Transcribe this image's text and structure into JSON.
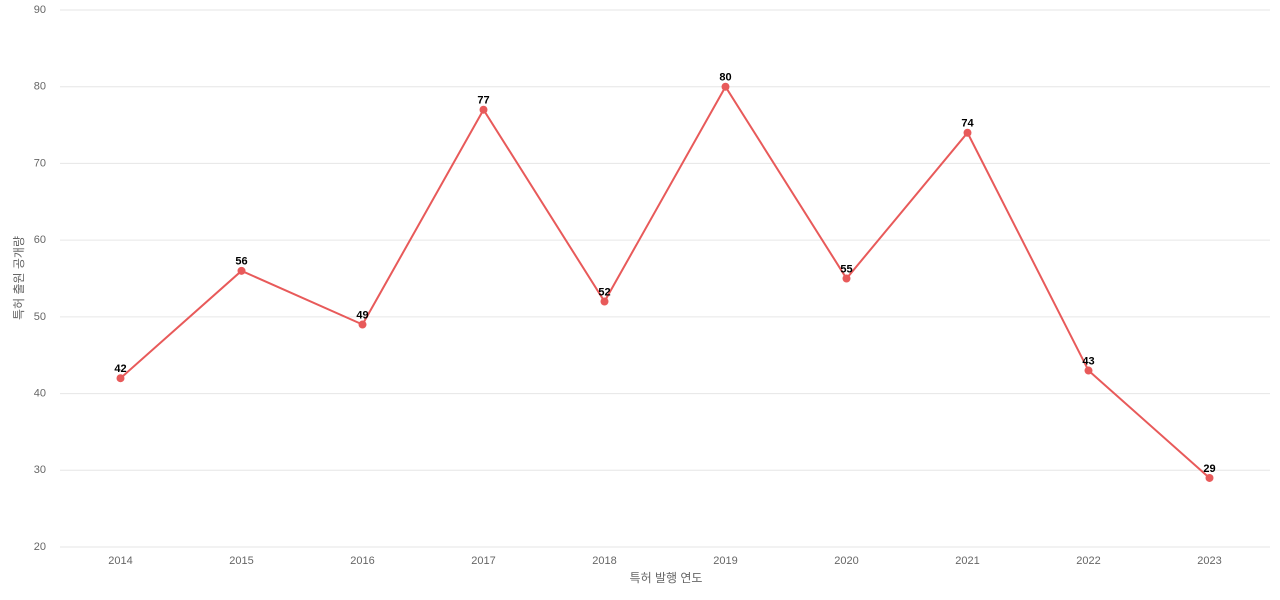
{
  "chart_data": {
    "type": "line",
    "x_label": "특허 발행 연도",
    "y_label": "특허 출원 공개량",
    "categories": [
      "2014",
      "2015",
      "2016",
      "2017",
      "2018",
      "2019",
      "2020",
      "2021",
      "2022",
      "2023"
    ],
    "series": [
      {
        "color": "#e85a5a",
        "values": [
          42,
          56,
          49,
          77,
          52,
          80,
          55,
          74,
          43,
          29
        ]
      }
    ],
    "ylim": [
      20,
      90
    ],
    "yticks": [
      20,
      30,
      40,
      50,
      60,
      70,
      80,
      90
    ],
    "grid": true
  }
}
